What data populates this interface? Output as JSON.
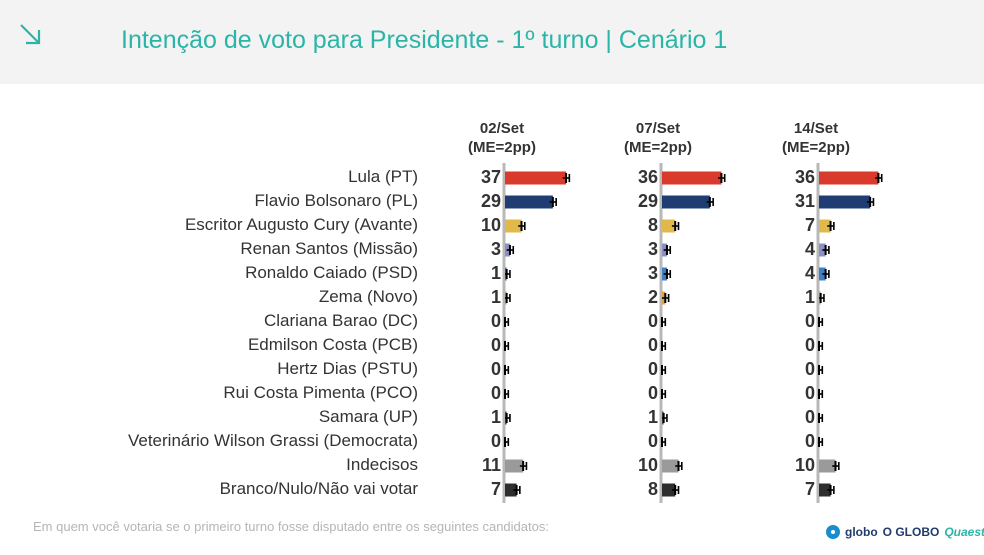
{
  "title": "Intenção de voto para Presidente - 1º turno | Cenário 1",
  "footnote": "Em quem você votaria se o primeiro turno fosse disputado entre os seguintes candidatos:",
  "logos": {
    "globo": "globo",
    "oglobo": "O GLOBO",
    "quaest": "Quaest"
  },
  "colors": {
    "accent": "#2bb5a8",
    "lula": "#d93a2b",
    "bolsonaro": "#1f3d73",
    "cury": "#e0b94a",
    "santos": "#8a8fc4",
    "caiado": "#3f7fc8",
    "zema": "#e2a04a",
    "indecisos": "#9a9a9a",
    "branco": "#2e2e2e"
  },
  "chart_data": {
    "type": "bar",
    "columns": [
      {
        "header_line1": "02/Set",
        "header_line2": "(ME=2pp)"
      },
      {
        "header_line1": "07/Set",
        "header_line2": "(ME=2pp)"
      },
      {
        "header_line1": "14/Set",
        "header_line2": "(ME=2pp)"
      }
    ],
    "candidates": [
      "Lula (PT)",
      "Flavio Bolsonaro (PL)",
      "Escritor Augusto Cury (Avante)",
      "Renan Santos (Missão)",
      "Ronaldo Caiado (PSD)",
      "Zema (Novo)",
      "Clariana Barao (DC)",
      "Edmilson Costa (PCB)",
      "Hertz Dias (PSTU)",
      "Rui Costa Pimenta (PCO)",
      "Samara (UP)",
      "Veterinário Wilson Grassi (Democrata)",
      "Indecisos",
      "Branco/Nulo/Não vai votar"
    ],
    "series_colors": [
      "#d93a2b",
      "#1f3d73",
      "#e0b94a",
      "#8a8fc4",
      "#3f7fc8",
      "#e2a04a",
      "#555555",
      "#555555",
      "#555555",
      "#555555",
      "#555555",
      "#555555",
      "#9a9a9a",
      "#2e2e2e"
    ],
    "values": [
      [
        37,
        29,
        10,
        3,
        1,
        1,
        0,
        0,
        0,
        0,
        1,
        0,
        11,
        7
      ],
      [
        36,
        29,
        8,
        3,
        3,
        2,
        0,
        0,
        0,
        0,
        1,
        0,
        10,
        8
      ],
      [
        36,
        31,
        7,
        4,
        4,
        1,
        0,
        0,
        0,
        0,
        0,
        0,
        10,
        7
      ]
    ],
    "error_margin": 2
  }
}
